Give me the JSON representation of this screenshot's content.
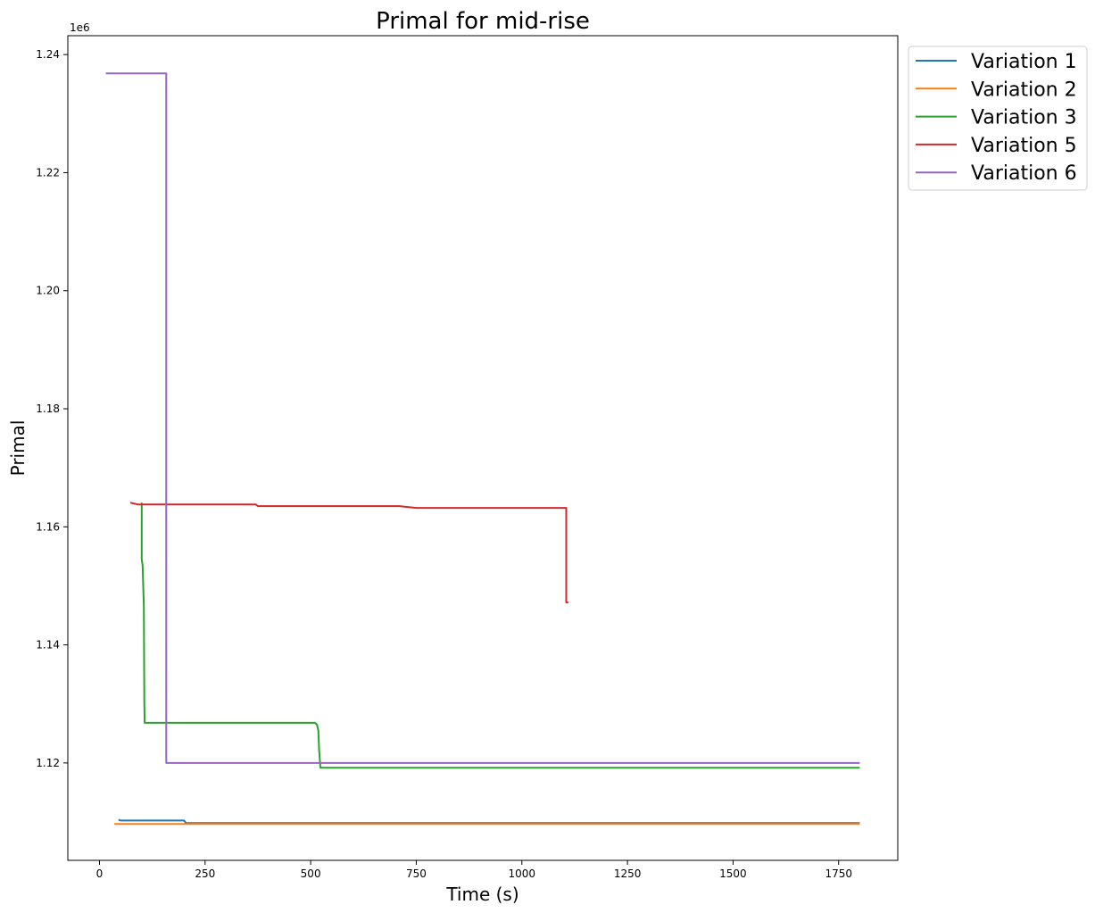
{
  "chart_data": {
    "type": "line",
    "title": "Primal for mid-rise",
    "xlabel": "Time (s)",
    "ylabel": "Primal",
    "y_offset_label": "1e6",
    "xlim": [
      -75,
      1890
    ],
    "ylim": [
      1.1035,
      1.2432
    ],
    "x_ticks": [
      0,
      250,
      500,
      750,
      1000,
      1250,
      1500,
      1750
    ],
    "x_tick_labels": [
      "0",
      "250",
      "500",
      "750",
      "1000",
      "1250",
      "1500",
      "1750"
    ],
    "y_ticks": [
      1.12,
      1.14,
      1.16,
      1.18,
      1.2,
      1.22,
      1.24
    ],
    "y_tick_labels": [
      "1.12",
      "1.14",
      "1.16",
      "1.18",
      "1.20",
      "1.22",
      "1.24"
    ],
    "grid": false,
    "legend_position": "outside-top-right",
    "series": [
      {
        "name": "Variation 1",
        "color": "#1f77b4",
        "points": [
          [
            45,
            1.1104
          ],
          [
            50,
            1.11025
          ],
          [
            200,
            1.11025
          ],
          [
            205,
            1.1098
          ],
          [
            1800,
            1.1098
          ]
        ]
      },
      {
        "name": "Variation 2",
        "color": "#ff7f0e",
        "points": [
          [
            35,
            1.10965
          ],
          [
            1800,
            1.10965
          ]
        ]
      },
      {
        "name": "Variation 3",
        "color": "#2ca02c",
        "points": [
          [
            100,
            1.1641
          ],
          [
            100,
            1.1545
          ],
          [
            102,
            1.1535
          ],
          [
            105,
            1.1465
          ],
          [
            106,
            1.1305
          ],
          [
            107,
            1.1268
          ],
          [
            510,
            1.1268
          ],
          [
            515,
            1.1265
          ],
          [
            518,
            1.1255
          ],
          [
            520,
            1.1222
          ],
          [
            523,
            1.1192
          ],
          [
            1800,
            1.1192
          ]
        ]
      },
      {
        "name": "Variation 5",
        "color": "#d62728",
        "points": [
          [
            73,
            1.1641
          ],
          [
            90,
            1.1638
          ],
          [
            370,
            1.1638
          ],
          [
            375,
            1.1635
          ],
          [
            710,
            1.1635
          ],
          [
            750,
            1.1632
          ],
          [
            1105,
            1.1632
          ],
          [
            1105,
            1.1472
          ],
          [
            1110,
            1.1472
          ]
        ]
      },
      {
        "name": "Variation 6",
        "color": "#9467bd",
        "points": [
          [
            15,
            1.2368
          ],
          [
            158,
            1.2368
          ],
          [
            158,
            1.12
          ],
          [
            1800,
            1.12
          ]
        ]
      }
    ]
  }
}
